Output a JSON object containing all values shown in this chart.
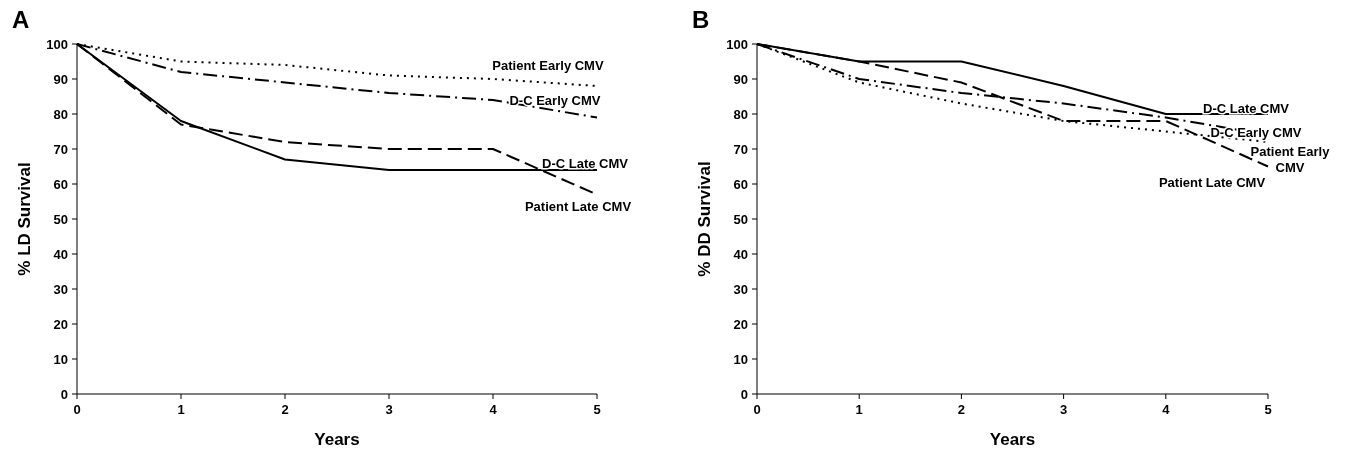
{
  "chart_data": [
    {
      "type": "line",
      "title": "A",
      "xlabel": "Years",
      "ylabel": "% LD Survival",
      "x": [
        0,
        1,
        2,
        3,
        4,
        5
      ],
      "xlim": [
        0,
        5
      ],
      "xticks": [
        0,
        1,
        2,
        3,
        4,
        5
      ],
      "ylim": [
        0,
        100
      ],
      "yticks": [
        0,
        10,
        20,
        30,
        40,
        50,
        60,
        70,
        80,
        90,
        100
      ],
      "grid": false,
      "marker": "none",
      "series": [
        {
          "name": "Patient Early CMV",
          "color": "#000000",
          "line_style": "dotted",
          "values": [
            100,
            95,
            94,
            91,
            90,
            88
          ]
        },
        {
          "name": "D-C Early CMV",
          "color": "#000000",
          "line_style": "dashdot",
          "values": [
            100,
            92,
            89,
            86,
            84,
            79
          ]
        },
        {
          "name": "D-C Late CMV",
          "color": "#000000",
          "line_style": "solid",
          "values": [
            100,
            78,
            67,
            64,
            64,
            64
          ]
        },
        {
          "name": "Patient Late CMV",
          "color": "#000000",
          "line_style": "dashed",
          "values": [
            100,
            77,
            72,
            70,
            70,
            57
          ]
        }
      ]
    },
    {
      "type": "line",
      "title": "B",
      "xlabel": "Years",
      "ylabel": "% DD Survival",
      "x": [
        0,
        1,
        2,
        3,
        4,
        5
      ],
      "xlim": [
        0,
        5
      ],
      "xticks": [
        0,
        1,
        2,
        3,
        4,
        5
      ],
      "ylim": [
        0,
        100
      ],
      "yticks": [
        0,
        10,
        20,
        30,
        40,
        50,
        60,
        70,
        80,
        90,
        100
      ],
      "grid": false,
      "marker": "none",
      "series": [
        {
          "name": "D-C Late CMV",
          "color": "#000000",
          "line_style": "solid",
          "values": [
            100,
            95,
            95,
            88,
            80,
            80
          ]
        },
        {
          "name": "D-C Early CMV",
          "color": "#000000",
          "line_style": "dashdot",
          "values": [
            100,
            90,
            86,
            83,
            79,
            74
          ]
        },
        {
          "name": "Patient Early CMV",
          "color": "#000000",
          "line_style": "dotted",
          "values": [
            100,
            89,
            83,
            78,
            75,
            72
          ]
        },
        {
          "name": "Patient Late CMV",
          "color": "#000000",
          "line_style": "dashed",
          "values": [
            100,
            95,
            89,
            78,
            78,
            65
          ]
        }
      ]
    }
  ]
}
